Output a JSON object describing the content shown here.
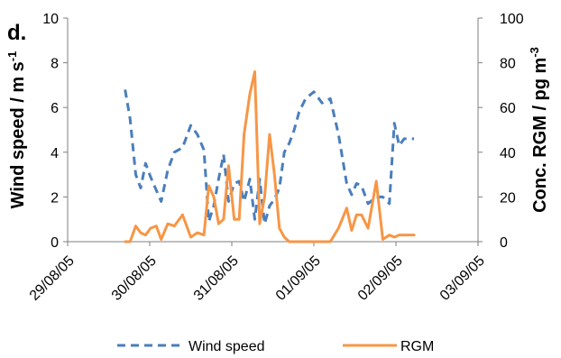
{
  "chart_data": {
    "type": "line",
    "panel_label": "d.",
    "x_ticks": [
      "29/08/05",
      "30/08/05",
      "31/08/05",
      "01/09/05",
      "02/09/05",
      "03/09/05"
    ],
    "xlim": [
      "29/08/05",
      "03/09/05"
    ],
    "left_axis": {
      "ylabel_main": "Wind  speed / m s",
      "ylabel_sup": "-1",
      "ylim": [
        0,
        10
      ],
      "ticks": [
        "0",
        "2",
        "4",
        "6",
        "8",
        "10"
      ]
    },
    "right_axis": {
      "ylabel_main": "Conc. RGM / pg m",
      "ylabel_sup": "-3",
      "ylim": [
        0,
        100
      ],
      "ticks": [
        "0",
        "20",
        "40",
        "60",
        "80",
        "100"
      ]
    },
    "legend": {
      "placement": "bottom"
    },
    "series": [
      {
        "name": "Wind speed",
        "axis": "left",
        "color": "#4a7ebb",
        "style": "dashed",
        "x": [
          0.7,
          0.76,
          0.83,
          0.89,
          0.95,
          1.01,
          1.08,
          1.14,
          1.22,
          1.3,
          1.4,
          1.5,
          1.58,
          1.66,
          1.72,
          1.78,
          1.84,
          1.9,
          1.96,
          2.03,
          2.09,
          2.15,
          2.22,
          2.28,
          2.34,
          2.4,
          2.46,
          2.52,
          2.58,
          2.64,
          2.7,
          2.76,
          2.82,
          2.9,
          3.0,
          3.1,
          3.2,
          3.3,
          3.4,
          3.46,
          3.52,
          3.58,
          3.66,
          3.76,
          3.84,
          3.92,
          3.98,
          4.04,
          4.1,
          4.16,
          4.22
        ],
        "values": [
          6.8,
          5.5,
          3.0,
          2.4,
          3.5,
          2.9,
          2.3,
          1.8,
          3.2,
          4.0,
          4.2,
          5.2,
          4.8,
          4.1,
          0.9,
          1.6,
          2.8,
          3.9,
          1.8,
          2.6,
          2.7,
          1.8,
          2.8,
          1.0,
          2.8,
          0.8,
          1.6,
          1.9,
          2.4,
          4.0,
          4.4,
          5.0,
          5.8,
          6.4,
          6.7,
          6.2,
          6.4,
          4.8,
          2.6,
          2.1,
          2.6,
          2.5,
          1.7,
          2.0,
          2.0,
          1.7,
          5.3,
          4.3,
          4.6,
          4.6,
          4.6
        ]
      },
      {
        "name": "RGM",
        "axis": "right",
        "color": "#f79646",
        "style": "solid",
        "x": [
          0.7,
          0.76,
          0.83,
          0.89,
          0.95,
          1.01,
          1.08,
          1.14,
          1.22,
          1.3,
          1.4,
          1.5,
          1.58,
          1.66,
          1.72,
          1.78,
          1.84,
          1.9,
          1.96,
          2.03,
          2.09,
          2.15,
          2.22,
          2.28,
          2.34,
          2.4,
          2.46,
          2.52,
          2.58,
          2.64,
          2.7,
          2.76,
          2.82,
          2.9,
          3.0,
          3.1,
          3.2,
          3.3,
          3.4,
          3.46,
          3.52,
          3.58,
          3.66,
          3.76,
          3.84,
          3.92,
          3.98,
          4.04,
          4.1,
          4.16,
          4.22
        ],
        "values": [
          0,
          0,
          7,
          4,
          3,
          6,
          7,
          1,
          8,
          7,
          12,
          2,
          4,
          3,
          25,
          20,
          8,
          10,
          34,
          10,
          10,
          48,
          66,
          76,
          8,
          20,
          48,
          30,
          6,
          2,
          0,
          0,
          0,
          0,
          0,
          0,
          0,
          6,
          15,
          5,
          12,
          12,
          6,
          27,
          1,
          3,
          2,
          3,
          3,
          3,
          3
        ]
      }
    ]
  }
}
